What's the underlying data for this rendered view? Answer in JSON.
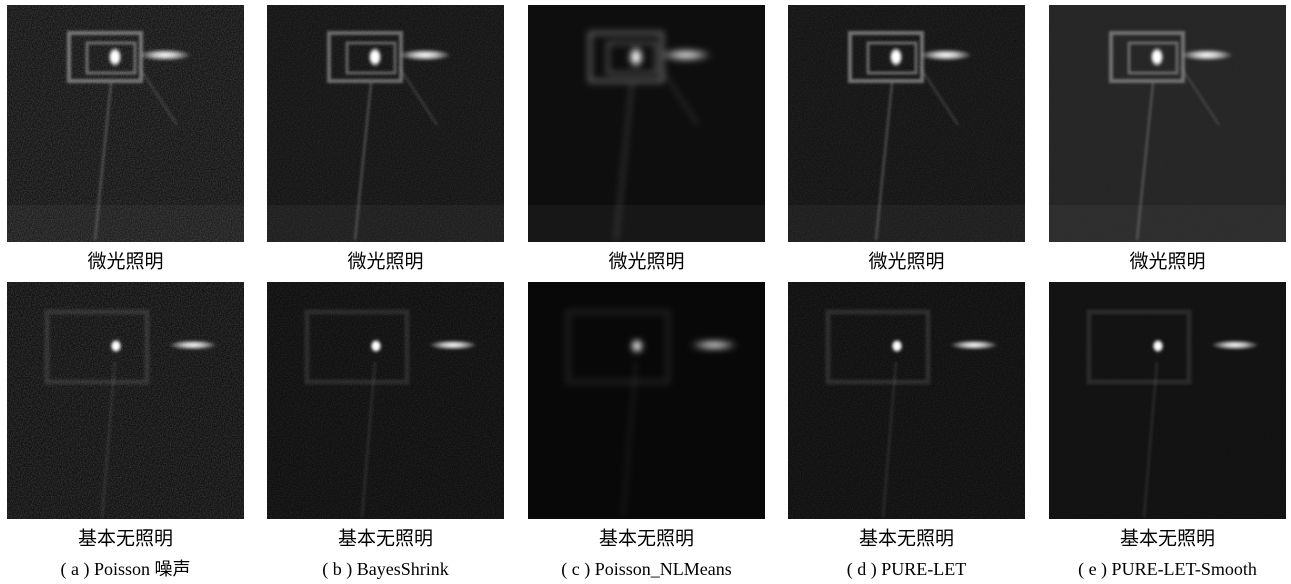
{
  "panels": [
    {
      "top_label": "微光照明",
      "bottom_label": "基本无照明",
      "caption": "( a ) Poisson 噪声"
    },
    {
      "top_label": "微光照明",
      "bottom_label": "基本无照明",
      "caption": "( b ) BayesShrink"
    },
    {
      "top_label": "微光照明",
      "bottom_label": "基本无照明",
      "caption": "( c ) Poisson_NLMeans"
    },
    {
      "top_label": "微光照明",
      "bottom_label": "基本无照明",
      "caption": "( d ) PURE-LET"
    },
    {
      "top_label": "微光照明",
      "bottom_label": "基本无照明",
      "caption": "( e ) PURE-LET-Smooth"
    }
  ]
}
